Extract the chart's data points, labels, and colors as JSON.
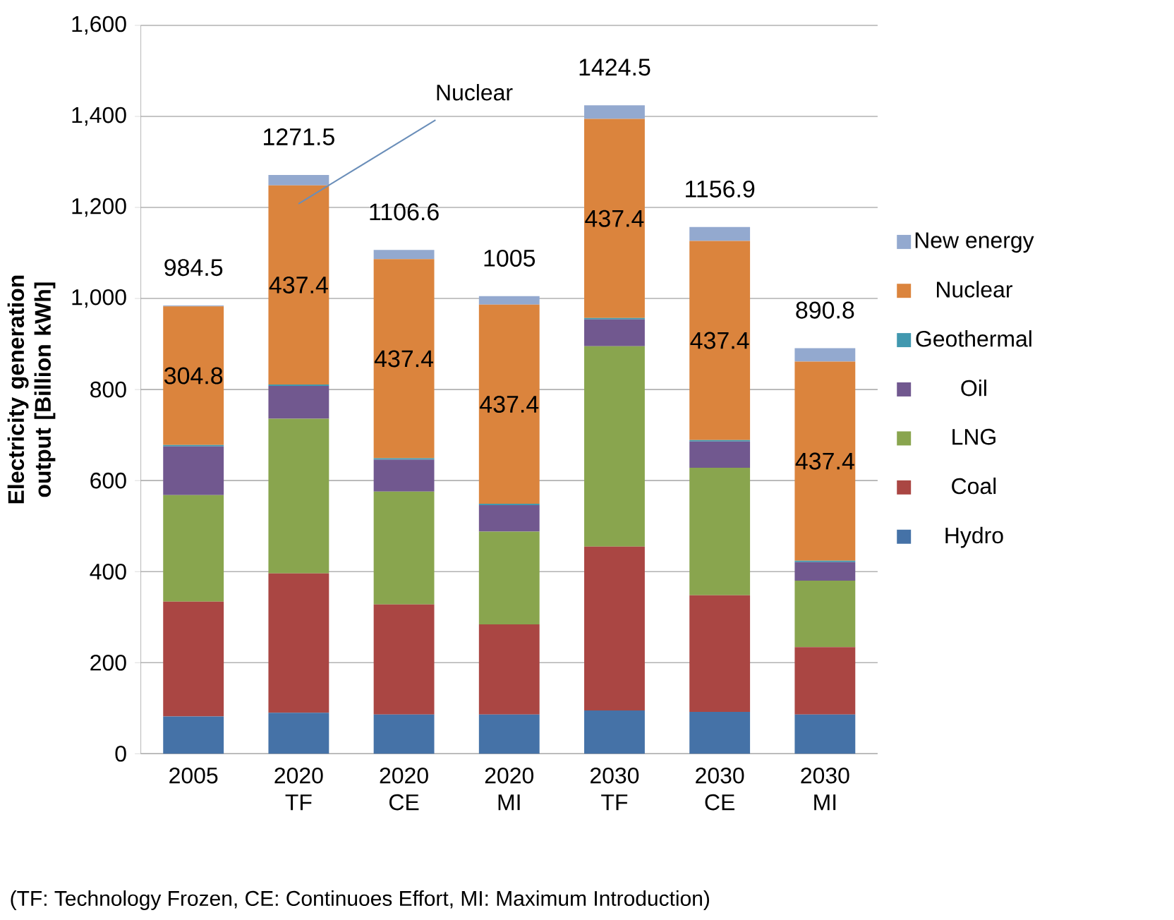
{
  "chart_data": {
    "type": "bar",
    "stacked": true,
    "ylabel": "Electricity generation output [Billion kWh]",
    "categories": [
      "2005",
      "2020 TF",
      "2020 CE",
      "2020 MI",
      "2030 TF",
      "2030 CE",
      "2030 MI"
    ],
    "series": [
      {
        "name": "Hydro",
        "color": "#4572a7",
        "values": [
          82,
          90,
          86,
          86,
          95,
          92,
          86
        ]
      },
      {
        "name": "Coal",
        "color": "#aa4643",
        "values": [
          252,
          306,
          242,
          198,
          360,
          256,
          148
        ]
      },
      {
        "name": "LNG",
        "color": "#89a54e",
        "values": [
          234,
          340,
          248,
          204,
          440,
          280,
          146
        ]
      },
      {
        "name": "Oil",
        "color": "#71588f",
        "values": [
          107,
          72,
          70,
          58,
          59,
          58,
          41
        ]
      },
      {
        "name": "Geothermal",
        "color": "#4198af",
        "values": [
          3,
          3,
          3,
          3,
          3,
          3,
          3
        ]
      },
      {
        "name": "Nuclear",
        "color": "#db843d",
        "values": [
          304.8,
          437.4,
          437.4,
          437.4,
          437.4,
          437.4,
          437.4
        ],
        "value_labels": [
          "304.8",
          "437.4",
          "437.4",
          "437.4",
          "437.4",
          "437.4",
          "437.4"
        ]
      },
      {
        "name": "New energy",
        "color": "#93a9cf",
        "values": [
          1.7,
          23.1,
          20.2,
          18.6,
          30.1,
          30.5,
          29.4
        ]
      }
    ],
    "totals": [
      "984.5",
      "1271.5",
      "1106.6",
      "1005",
      "1424.5",
      "1156.9",
      "890.8"
    ],
    "ylim": [
      0,
      1600
    ],
    "yticks": [
      {
        "value": 0,
        "label": "0"
      },
      {
        "value": 200,
        "label": "200"
      },
      {
        "value": 400,
        "label": "400"
      },
      {
        "value": 600,
        "label": "600"
      },
      {
        "value": 800,
        "label": "800"
      },
      {
        "value": 1000,
        "label": "1,000"
      },
      {
        "value": 1200,
        "label": "1,200"
      },
      {
        "value": 1400,
        "label": "1,400"
      },
      {
        "value": 1600,
        "label": "1,600"
      }
    ],
    "grid": "y",
    "legend": "right",
    "annotations": [
      "Nuclear",
      "(TF: Technology Frozen, CE: Continuoes Effort, MI: Maximum  Introduction)"
    ]
  }
}
